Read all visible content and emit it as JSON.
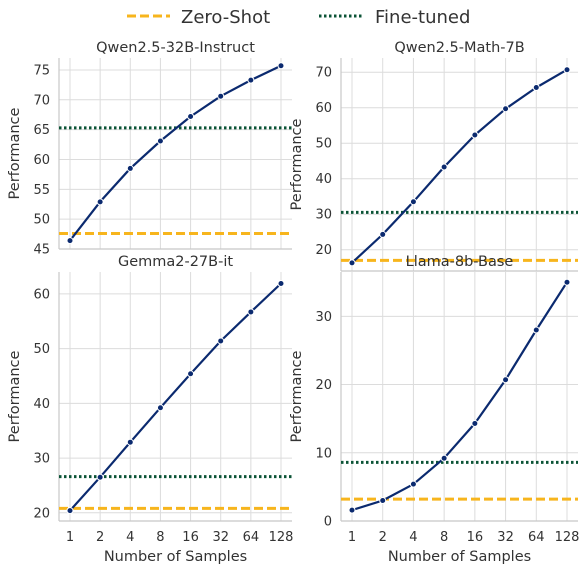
{
  "legend": {
    "zero_shot_label": "Zero-Shot",
    "fine_tuned_label": "Fine-tuned",
    "placement": "top-center"
  },
  "colors": {
    "curve": "#0b2a6f",
    "zero_shot": "#f7b51d",
    "fine_tuned": "#0b5336",
    "grid": "#dcdcdc",
    "axis": "#c8c8c8"
  },
  "chart_data": [
    {
      "type": "line",
      "title": "Qwen2.5-32B-Instruct",
      "xlabel": "",
      "ylabel": "Performance",
      "x": [
        1,
        2,
        4,
        8,
        16,
        32,
        64,
        128
      ],
      "x_scale": "log2",
      "series": [
        {
          "name": "",
          "values": [
            46.4,
            52.9,
            58.5,
            63.1,
            67.2,
            70.6,
            73.3,
            75.7
          ]
        }
      ],
      "zero_shot": 47.6,
      "fine_tuned": 65.3,
      "ylim": [
        45,
        77
      ],
      "yticks": [
        45,
        50,
        55,
        60,
        65,
        70,
        75
      ],
      "grid": true
    },
    {
      "type": "line",
      "title": "Qwen2.5-Math-7B",
      "xlabel": "",
      "ylabel": "Performance",
      "x": [
        1,
        2,
        4,
        8,
        16,
        32,
        64,
        128
      ],
      "x_scale": "log2",
      "series": [
        {
          "name": "",
          "values": [
            16.3,
            24.3,
            33.5,
            43.3,
            52.3,
            59.7,
            65.7,
            70.7
          ]
        }
      ],
      "zero_shot": 17.0,
      "fine_tuned": 30.5,
      "ylim": [
        14,
        74
      ],
      "yticks": [
        20,
        30,
        40,
        50,
        60,
        70
      ],
      "grid": true
    },
    {
      "type": "line",
      "title": "Gemma2-27B-it",
      "xlabel": "Number of Samples",
      "ylabel": "Performance",
      "x": [
        1,
        2,
        4,
        8,
        16,
        32,
        64,
        128
      ],
      "x_scale": "log2",
      "series": [
        {
          "name": "",
          "values": [
            20.4,
            26.5,
            32.9,
            39.2,
            45.4,
            51.4,
            56.7,
            61.9
          ]
        }
      ],
      "zero_shot": 20.8,
      "fine_tuned": 26.6,
      "ylim": [
        18.5,
        64
      ],
      "yticks": [
        20,
        30,
        40,
        50,
        60
      ],
      "grid": true
    },
    {
      "type": "line",
      "title": "Llama-8b-Base",
      "xlabel": "Number of Samples",
      "ylabel": "Performance",
      "x": [
        1,
        2,
        4,
        8,
        16,
        32,
        64,
        128
      ],
      "x_scale": "log2",
      "series": [
        {
          "name": "",
          "values": [
            1.6,
            3.0,
            5.4,
            9.2,
            14.3,
            20.7,
            28.0,
            35.0
          ]
        }
      ],
      "zero_shot": 3.2,
      "fine_tuned": 8.6,
      "ylim": [
        0,
        36.5
      ],
      "yticks": [
        0,
        10,
        20,
        30
      ],
      "grid": true
    }
  ]
}
